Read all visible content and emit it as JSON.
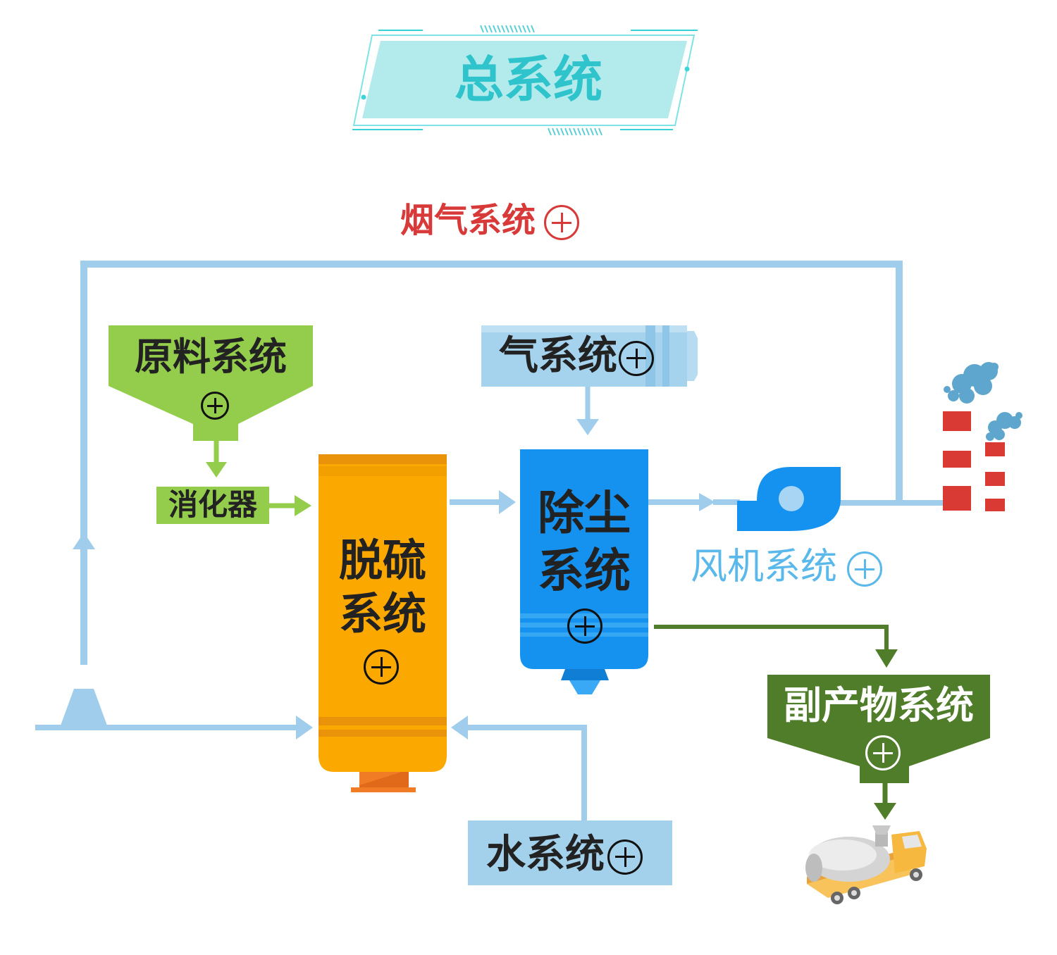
{
  "title": "总系统",
  "nodes": {
    "flue_gas": {
      "label": "烟气系统",
      "icon": "plus-circle-icon"
    },
    "raw_material": {
      "label": "原料系统",
      "icon": "plus-circle-icon"
    },
    "digester": {
      "label": "消化器"
    },
    "gas": {
      "label": "气系统",
      "icon": "plus-circle-icon"
    },
    "desulfurization": {
      "label_line1": "脱硫",
      "label_line2": "系统",
      "icon": "plus-circle-icon"
    },
    "dust_removal": {
      "label_line1": "除尘",
      "label_line2": "系统",
      "icon": "plus-circle-icon"
    },
    "fan": {
      "label": "风机系统",
      "icon": "plus-circle-icon"
    },
    "byproduct": {
      "label": "副产物系统",
      "icon": "plus-circle-icon"
    },
    "water": {
      "label": "水系统",
      "icon": "plus-circle-icon"
    }
  },
  "icons": [
    "fan-icon",
    "chimney-icon",
    "smoke-icon",
    "tanker-truck-icon",
    "inlet-nozzle-icon"
  ],
  "colors": {
    "pipe": "#9fcdeb",
    "title_bg": "#b3ebec",
    "title_text": "#2fc3cc",
    "flue_red": "#d83a3a",
    "raw_green": "#94cc4c",
    "gas_blue": "#a5d3ee",
    "desulf_orange": "#fba800",
    "dust_blue": "#1592f0",
    "fan_text": "#5ab8ea",
    "byproduct_green": "#507d2a",
    "water_blue": "#a3d1eb",
    "chimney_red": "#d93a34",
    "smoke": "#5ea6cd"
  }
}
